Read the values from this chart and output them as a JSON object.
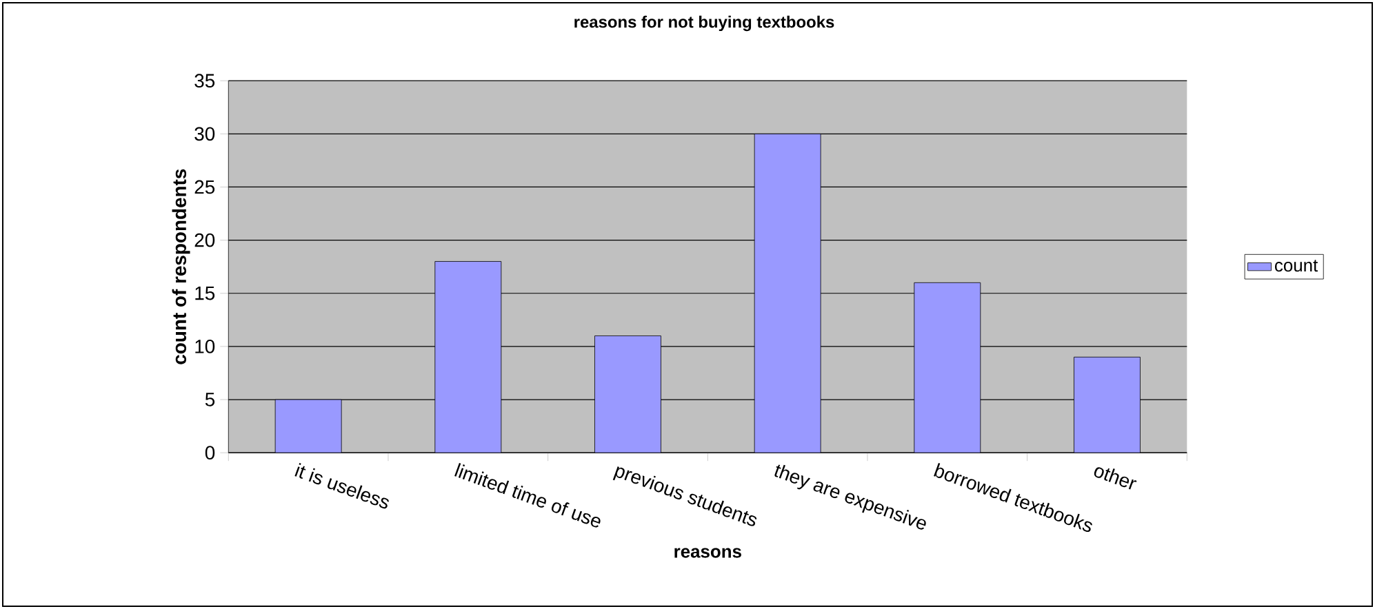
{
  "chart_data": {
    "type": "bar",
    "title": "**reasons for not buying textbooks**",
    "xlabel": "**reasons**",
    "ylabel": "**count of respondents**",
    "categories": [
      "it is useless",
      "limited time of use",
      "previous students",
      "they are expensive",
      "borrowed textbooks",
      "other"
    ],
    "series": [
      {
        "name": "count",
        "color": "#9999ff",
        "values": [
          5,
          18,
          11,
          30,
          16,
          9
        ]
      }
    ],
    "ylim": [
      0,
      35
    ],
    "yticks": [
      0,
      5,
      10,
      15,
      20,
      25,
      30,
      35
    ],
    "grid": "y",
    "legend": "right"
  }
}
